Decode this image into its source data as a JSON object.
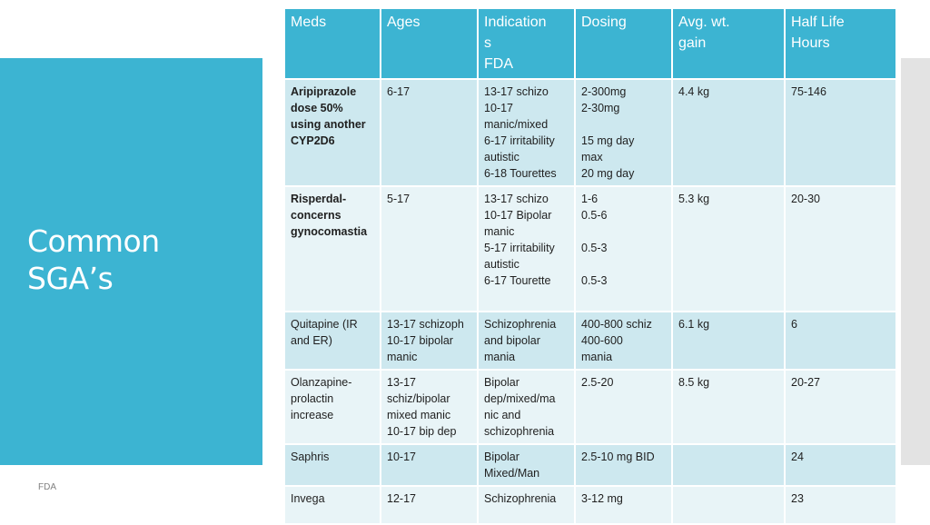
{
  "slide": {
    "title_line1": "Common",
    "title_line2": "SGA’s",
    "footer": "FDA"
  },
  "table": {
    "headers": [
      [
        "Meds"
      ],
      [
        "Ages"
      ],
      [
        "Indication",
        "s",
        "FDA"
      ],
      [
        "Dosing"
      ],
      [
        "Avg. wt.",
        "gain"
      ],
      [
        "Half Life",
        "Hours"
      ]
    ],
    "rows": [
      {
        "med": [
          "Aripiprazole",
          "dose 50%",
          "using another",
          "CYP2D6"
        ],
        "ages": [
          "6-17"
        ],
        "indication": [
          "13-17 schizo",
          "10-17",
          "manic/mixed",
          "6-17 irritability",
          "autistic",
          "6-18 Tourettes"
        ],
        "dosing": [
          "2-300mg",
          "2-30mg",
          "",
          "15 mg day",
          "max",
          "20 mg day"
        ],
        "wt_gain": [
          "4.4 kg"
        ],
        "half_life": [
          "75-146"
        ]
      },
      {
        "med": [
          "Risperdal-",
          "concerns",
          "gynocomastia"
        ],
        "ages": [
          "5-17"
        ],
        "indication": [
          "13-17 schizo",
          "10-17 Bipolar",
          "manic",
          "5-17 irritability",
          "autistic",
          "6-17 Tourette"
        ],
        "dosing": [
          "1-6",
          "0.5-6",
          "",
          "0.5-3",
          "",
          "0.5-3"
        ],
        "wt_gain": [
          "5.3 kg"
        ],
        "half_life": [
          "20-30"
        ]
      },
      {
        "med": [
          "Quitapine (IR",
          "and ER)"
        ],
        "ages": [
          "13-17 schizoph",
          "10-17 bipolar",
          "manic"
        ],
        "indication": [
          "Schizophrenia",
          "and bipolar",
          "mania"
        ],
        "dosing": [
          "400-800 schiz",
          "400-600",
          "mania"
        ],
        "wt_gain": [
          "6.1 kg"
        ],
        "half_life": [
          "6"
        ]
      },
      {
        "med": [
          "Olanzapine-",
          "prolactin",
          "increase"
        ],
        "ages": [
          "13-17",
          "schiz/bipolar",
          "mixed manic",
          "10-17 bip dep"
        ],
        "indication": [
          "Bipolar",
          "dep/mixed/ma",
          "nic and",
          "schizophrenia"
        ],
        "dosing": [
          "2.5-20"
        ],
        "wt_gain": [
          "8.5 kg"
        ],
        "half_life": [
          "20-27"
        ]
      },
      {
        "med": [
          "Saphris"
        ],
        "ages": [
          "10-17"
        ],
        "indication": [
          "Bipolar",
          "Mixed/Man"
        ],
        "dosing": [
          "2.5-10 mg BID"
        ],
        "wt_gain": [
          ""
        ],
        "half_life": [
          "24"
        ]
      },
      {
        "med": [
          "Invega"
        ],
        "ages": [
          "12-17"
        ],
        "indication": [
          "Schizophrenia"
        ],
        "dosing": [
          "3-12 mg"
        ],
        "wt_gain": [
          ""
        ],
        "half_life": [
          "23"
        ]
      }
    ]
  },
  "colors": {
    "accent": "#3cb4d2",
    "row_dark": "#cde8ef",
    "row_light": "#e8f4f7",
    "side_bar": "#e3e3e3"
  }
}
